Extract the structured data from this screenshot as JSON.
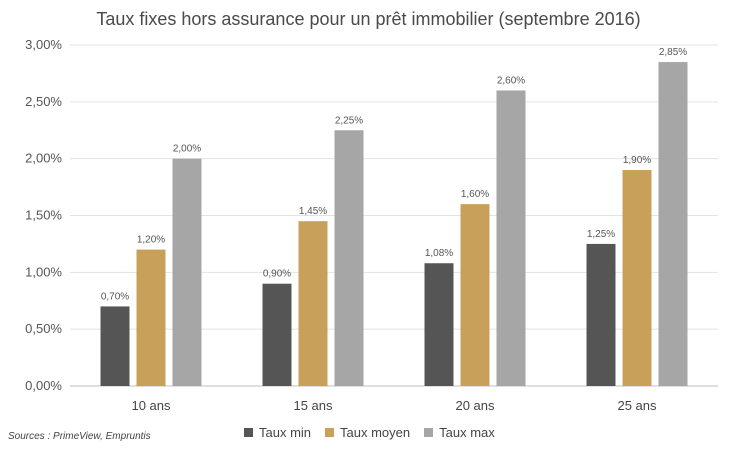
{
  "source_note": "Sources : PrimeView, Empruntis",
  "chart_data": {
    "type": "bar",
    "title": "Taux fixes hors assurance pour un prêt immobilier (septembre 2016)",
    "categories": [
      "10 ans",
      "15 ans",
      "20 ans",
      "25 ans"
    ],
    "ylim": [
      0,
      3.0
    ],
    "yticks": [
      0,
      0.5,
      1.0,
      1.5,
      2.0,
      2.5,
      3.0
    ],
    "ytick_labels": [
      "0,00%",
      "0,50%",
      "1,00%",
      "1,50%",
      "2,00%",
      "2,50%",
      "3,00%"
    ],
    "grid": true,
    "legend_position": "bottom",
    "series": [
      {
        "name": "Taux min",
        "color": "#555555",
        "values": [
          0.7,
          0.9,
          1.08,
          1.25
        ],
        "labels": [
          "0,70%",
          "0,90%",
          "1,08%",
          "1,25%"
        ]
      },
      {
        "name": "Taux moyen",
        "color": "#c8a05a",
        "values": [
          1.2,
          1.45,
          1.6,
          1.9
        ],
        "labels": [
          "1,20%",
          "1,45%",
          "1,60%",
          "1,90%"
        ]
      },
      {
        "name": "Taux max",
        "color": "#a6a6a6",
        "values": [
          2.0,
          2.25,
          2.6,
          2.85
        ],
        "labels": [
          "2,00%",
          "2,25%",
          "2,60%",
          "2,85%"
        ]
      }
    ]
  }
}
